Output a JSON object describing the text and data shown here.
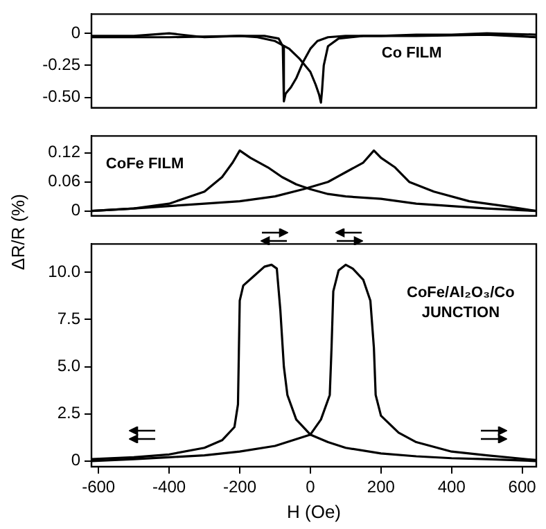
{
  "chart_data": [
    {
      "type": "line",
      "xlim": [
        -620,
        640
      ],
      "ylim": [
        -0.58,
        0.15
      ],
      "yticks": [
        0,
        -0.25,
        {
          "value": -0.5,
          "label": "-0.50"
        }
      ],
      "tick_labels": "y",
      "grid": false,
      "legend": false,
      "marker": "none",
      "line_style": "solid",
      "annotations": [
        "Co FILM"
      ],
      "series": [
        {
          "color": "#000000",
          "x": [
            -620,
            -500,
            -400,
            -300,
            -200,
            -130,
            -90,
            -78,
            -75,
            -70,
            -55,
            -40,
            -20,
            0,
            20,
            50,
            100,
            200,
            300,
            400,
            500,
            640
          ],
          "values": [
            -0.02,
            -0.02,
            0.0,
            -0.03,
            -0.02,
            -0.02,
            -0.04,
            -0.1,
            -0.53,
            -0.47,
            -0.42,
            -0.35,
            -0.22,
            -0.12,
            -0.06,
            -0.03,
            -0.02,
            -0.02,
            -0.01,
            -0.01,
            0.0,
            -0.01
          ]
        },
        {
          "color": "#000000",
          "x": [
            -620,
            -400,
            -200,
            -150,
            -100,
            -60,
            -30,
            0,
            15,
            25,
            30,
            33,
            38,
            50,
            80,
            150,
            300,
            500,
            640
          ],
          "values": [
            -0.03,
            -0.03,
            -0.02,
            -0.03,
            -0.06,
            -0.12,
            -0.2,
            -0.3,
            -0.4,
            -0.48,
            -0.54,
            -0.45,
            -0.25,
            -0.1,
            -0.04,
            -0.02,
            -0.02,
            -0.01,
            -0.03
          ]
        }
      ]
    },
    {
      "type": "line",
      "xlim": [
        -620,
        640
      ],
      "ylim": [
        -0.01,
        0.155
      ],
      "yticks": [
        0,
        0.06,
        0.12
      ],
      "tick_labels": "y",
      "grid": false,
      "legend": false,
      "marker": "none",
      "line_style": "solid",
      "ylabel": "ΔR/R (%)",
      "annotations": [
        "CoFe FILM"
      ],
      "series": [
        {
          "color": "#000000",
          "x": [
            -620,
            -500,
            -400,
            -300,
            -250,
            -220,
            -200,
            -170,
            -120,
            -80,
            -40,
            0,
            50,
            100,
            200,
            300,
            400,
            500,
            640
          ],
          "values": [
            0.0,
            0.005,
            0.015,
            0.04,
            0.07,
            0.1,
            0.125,
            0.11,
            0.09,
            0.07,
            0.055,
            0.045,
            0.035,
            0.03,
            0.025,
            0.015,
            0.01,
            0.005,
            0.0
          ]
        },
        {
          "color": "#000000",
          "x": [
            -620,
            -500,
            -400,
            -300,
            -200,
            -100,
            -20,
            50,
            100,
            150,
            180,
            200,
            240,
            280,
            350,
            450,
            550,
            640
          ],
          "values": [
            0.0,
            0.005,
            0.01,
            0.015,
            0.02,
            0.03,
            0.045,
            0.06,
            0.08,
            0.1,
            0.125,
            0.11,
            0.09,
            0.06,
            0.04,
            0.02,
            0.01,
            0.0
          ]
        }
      ]
    },
    {
      "type": "line",
      "xlim": [
        -620,
        640
      ],
      "xticks": [
        -600,
        -400,
        -200,
        0,
        200,
        400,
        600
      ],
      "ylim": [
        -0.3,
        11.5
      ],
      "yticks": [
        0,
        2.5,
        {
          "value": 5,
          "label": "5.0"
        },
        7.5,
        {
          "value": 10,
          "label": "10.0"
        }
      ],
      "grid": false,
      "legend": false,
      "marker": "none",
      "line_style": "solid",
      "xlabel": "H (Oe)",
      "annotations": [
        "CoFe/Al₂O₃/Co",
        "JUNCTION"
      ],
      "series": [
        {
          "color": "#000000",
          "x": [
            -620,
            -500,
            -400,
            -300,
            -250,
            -215,
            -205,
            -200,
            -190,
            -160,
            -130,
            -110,
            -95,
            -85,
            -75,
            -65,
            -40,
            0,
            50,
            100,
            200,
            300,
            400,
            500,
            640
          ],
          "values": [
            0.1,
            0.2,
            0.35,
            0.7,
            1.1,
            1.8,
            3,
            8.5,
            9.3,
            9.8,
            10.3,
            10.4,
            10.2,
            8,
            5,
            3.5,
            2.2,
            1.4,
            1.0,
            0.7,
            0.4,
            0.25,
            0.15,
            0.1,
            0.0
          ]
        },
        {
          "color": "#000000",
          "x": [
            -620,
            -500,
            -400,
            -300,
            -200,
            -100,
            0,
            30,
            55,
            60,
            65,
            80,
            100,
            120,
            150,
            170,
            180,
            185,
            200,
            250,
            300,
            400,
            500,
            640
          ],
          "values": [
            0.0,
            0.1,
            0.2,
            0.3,
            0.5,
            0.8,
            1.4,
            2.2,
            3.5,
            6,
            9,
            10.1,
            10.4,
            10.2,
            9.6,
            8.5,
            6,
            3.5,
            2.4,
            1.5,
            1.0,
            0.5,
            0.3,
            0.05
          ]
        }
      ]
    }
  ]
}
